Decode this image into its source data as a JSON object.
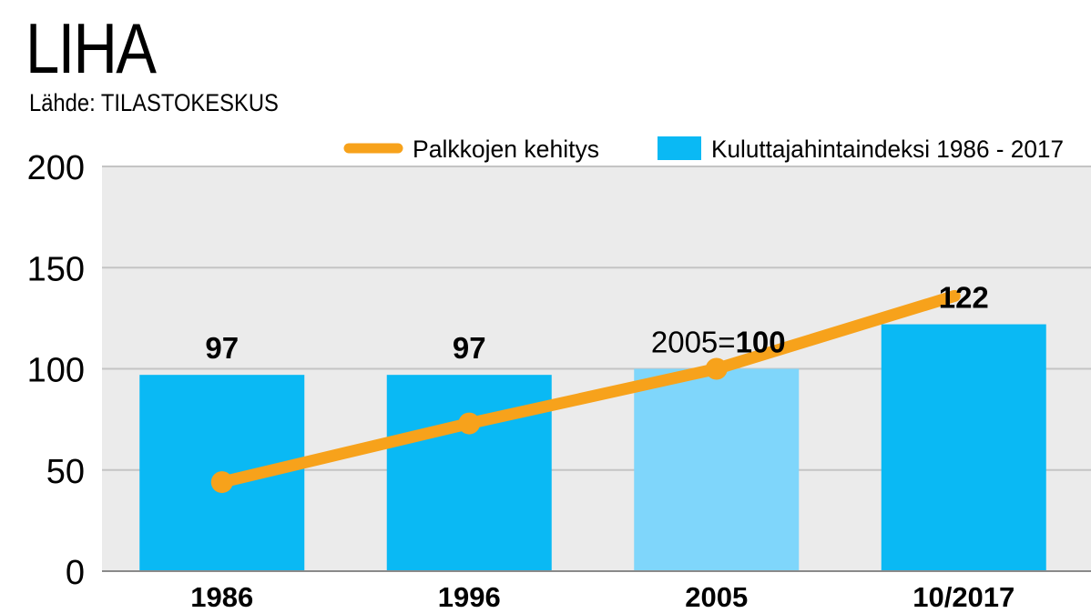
{
  "chart_data": {
    "type": "bar",
    "title": "LIHA",
    "subtitle": "Lähde: TILASTOKESKUS",
    "categories": [
      "1986",
      "1996",
      "2005",
      "10/2017"
    ],
    "series": [
      {
        "name": "Kuluttajahintaindeksi 1986 - 2017",
        "kind": "bar",
        "values": [
          97,
          97,
          100,
          122
        ],
        "labels": [
          "97",
          "97",
          "100",
          "122"
        ],
        "colors": [
          "#0ab9f4",
          "#0ab9f4",
          "#7fd6fb",
          "#0ab9f4"
        ]
      },
      {
        "name": "Palkkojen kehitys",
        "kind": "line",
        "values": [
          44,
          73,
          100,
          136
        ],
        "color": "#f7a21b"
      }
    ],
    "annotation": {
      "prefix": "2005=",
      "value": "100"
    },
    "yticks": [
      "0",
      "50",
      "100",
      "150",
      "200"
    ],
    "ylim": [
      0,
      200
    ],
    "grid": true,
    "legend_position": "top-right"
  }
}
